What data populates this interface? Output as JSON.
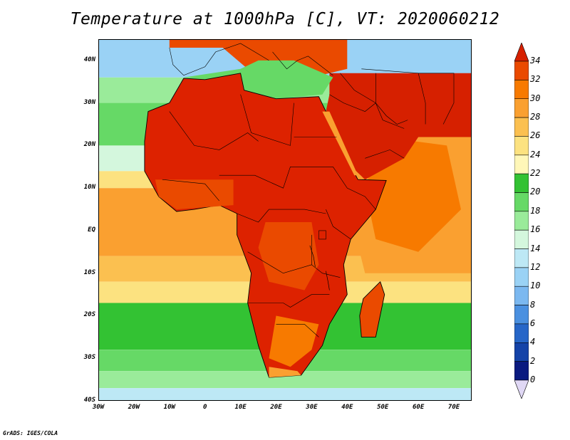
{
  "title": "Temperature at 1000hPa [C], VT: 2020060212",
  "credit": "GrADS: IGES/COLA",
  "map": {
    "lon_range": [
      -30,
      75
    ],
    "lat_range": [
      -40,
      45
    ],
    "x_ticks": [
      "30W",
      "20W",
      "10W",
      "0",
      "10E",
      "20E",
      "30E",
      "40E",
      "50E",
      "60E",
      "70E"
    ],
    "y_ticks": [
      "40S",
      "30S",
      "20S",
      "10S",
      "EQ",
      "10N",
      "20N",
      "30N",
      "40N"
    ],
    "land_color": "#dd2200",
    "background_color": "#f0a030"
  },
  "colorbar": {
    "levels": [
      "34",
      "32",
      "30",
      "28",
      "26",
      "24",
      "22",
      "20",
      "18",
      "16",
      "14",
      "12",
      "10",
      "8",
      "6",
      "4",
      "2",
      "0"
    ],
    "colors": [
      "#d62000",
      "#ea4a00",
      "#f77a00",
      "#faa030",
      "#fbc050",
      "#fce280",
      "#fff7b8",
      "#33c233",
      "#66d966",
      "#9aeb9a",
      "#d4f7dd",
      "#bde8f5",
      "#9ad2f5",
      "#7bb8f0",
      "#4a90e0",
      "#2666c8",
      "#1443a8",
      "#0a1a80",
      "#e0d8f5"
    ]
  },
  "chart_data": {
    "type": "heatmap",
    "title": "Temperature at 1000hPa [C], VT: 2020060212",
    "xlabel": "",
    "ylabel": "",
    "x_range": [
      -30,
      75
    ],
    "y_range": [
      -40,
      45
    ],
    "x_ticks": [
      "30W",
      "20W",
      "10W",
      "0",
      "10E",
      "20E",
      "30E",
      "40E",
      "50E",
      "60E",
      "70E"
    ],
    "y_ticks": [
      "40S",
      "30S",
      "20S",
      "10S",
      "EQ",
      "10N",
      "20N",
      "30N",
      "40N"
    ],
    "colorbar_levels": [
      0,
      2,
      4,
      6,
      8,
      10,
      12,
      14,
      16,
      18,
      20,
      22,
      24,
      26,
      28,
      30,
      32,
      34
    ],
    "units": "C"
  }
}
